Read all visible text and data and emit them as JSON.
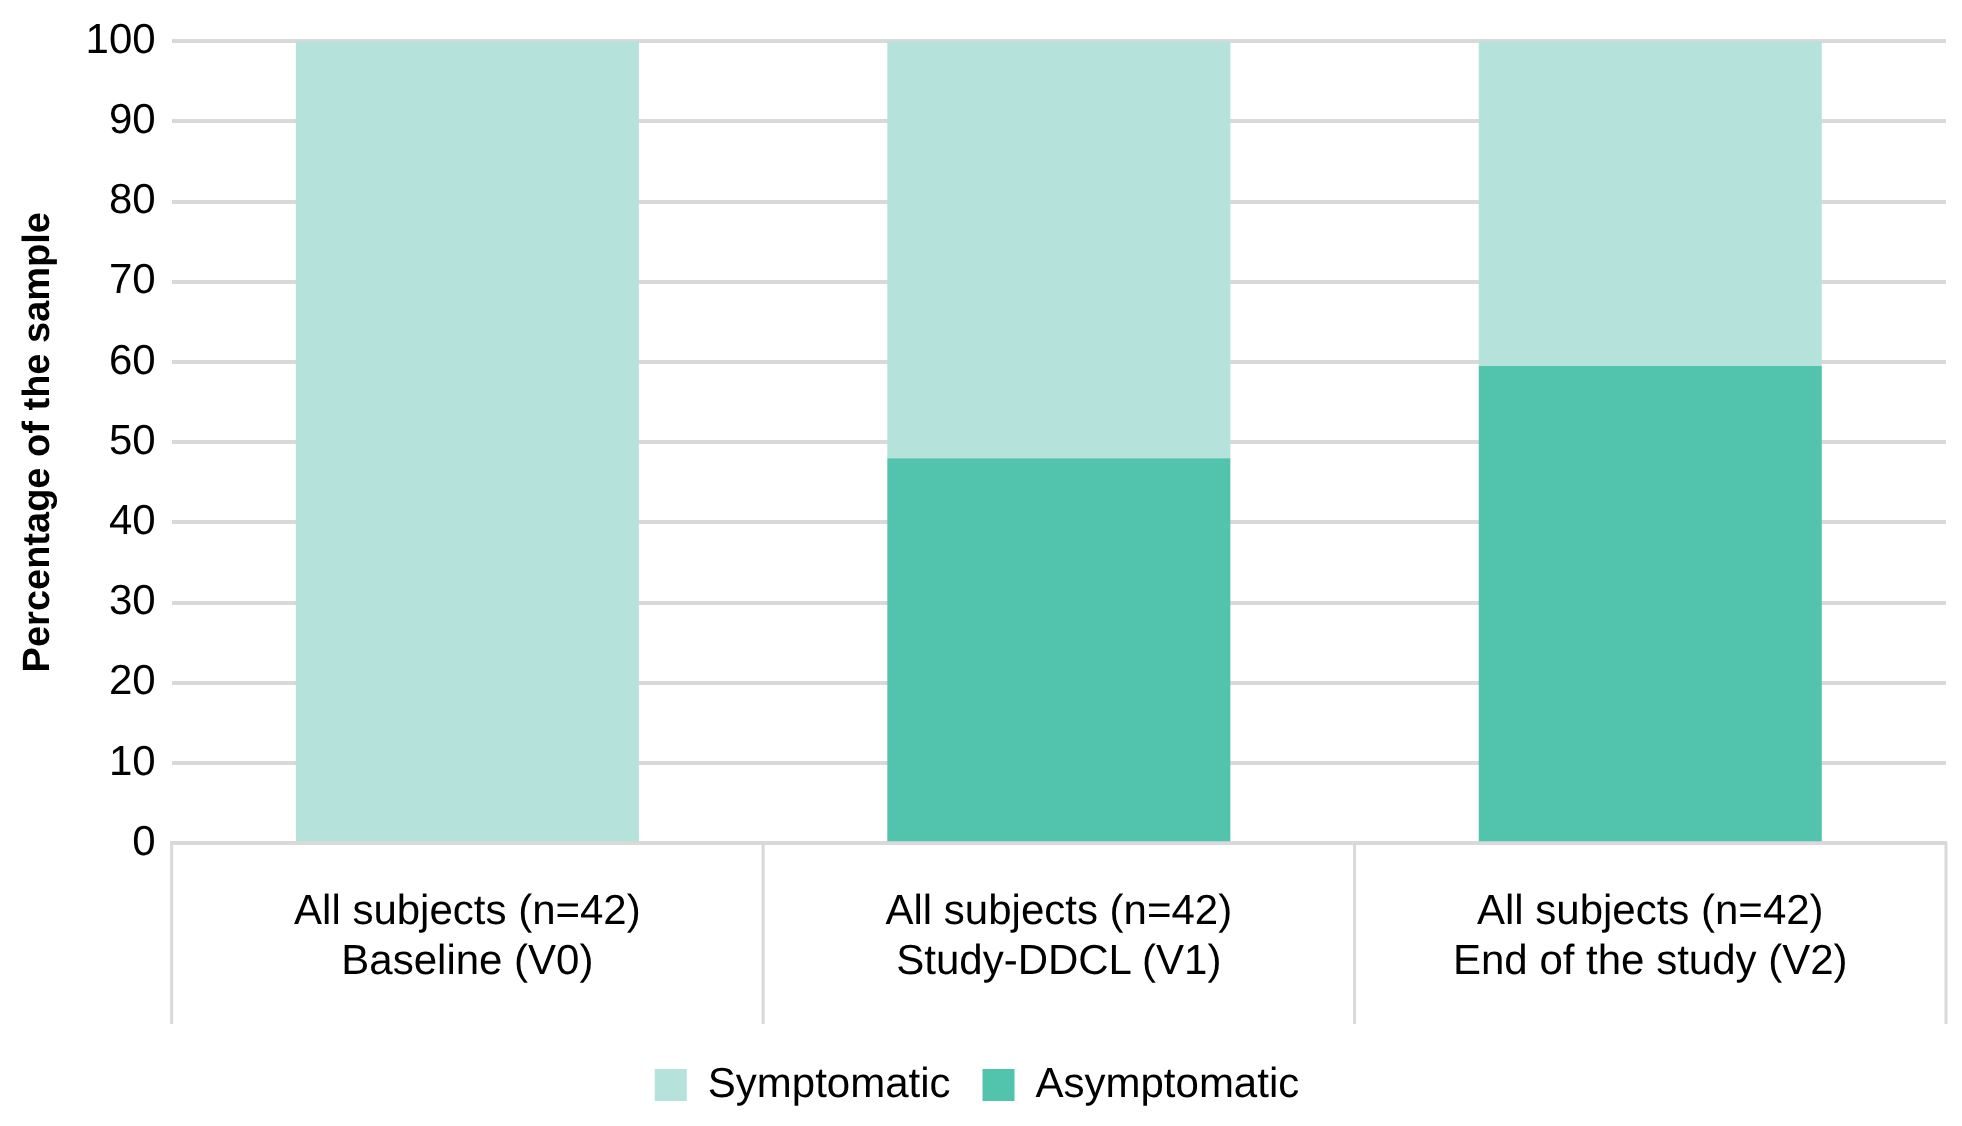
{
  "chart_data": {
    "type": "bar",
    "ylabel": "Percentage of the sample",
    "categories": [
      "All subjects (n=42)\nBaseline (V0)",
      "All subjects (n=42)\nStudy-DDCL (V1)",
      "All subjects (n=42)\nEnd of the study (V2)"
    ],
    "stacked": true,
    "series": [
      {
        "name": "Asymptomatic",
        "color": "#52c4ad",
        "values": [
          0,
          48,
          59.5
        ]
      },
      {
        "name": "Symptomatic",
        "color": "#b5e3dc",
        "values": [
          100,
          52,
          40.5
        ]
      }
    ],
    "ylim": [
      0,
      100
    ],
    "yticks": [
      0,
      10,
      20,
      30,
      40,
      50,
      60,
      70,
      80,
      90,
      100
    ],
    "grid": "y",
    "legend": "bottom"
  }
}
